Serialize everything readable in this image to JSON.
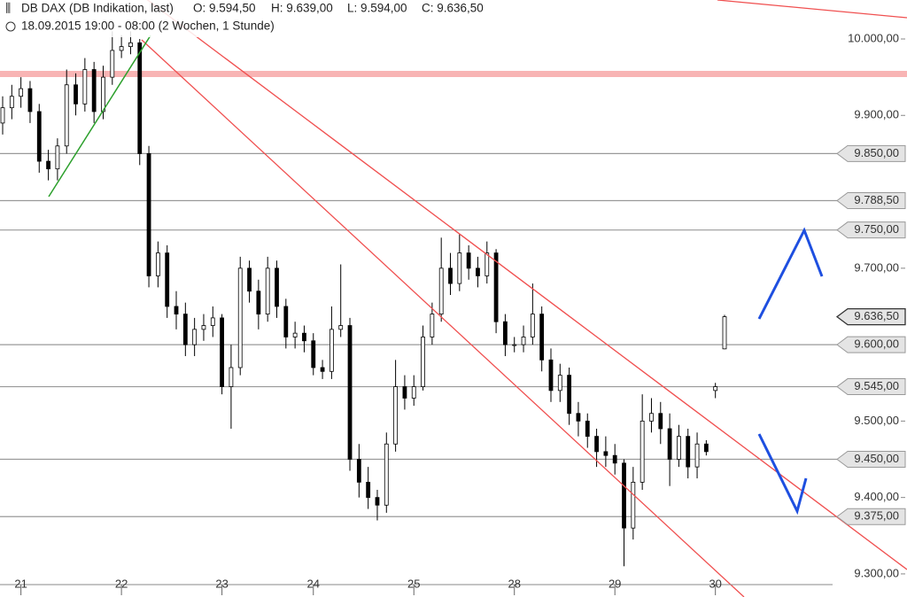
{
  "header": {
    "symbol": "DB DAX (DB Indikation, last)",
    "open": "O: 9.594,50",
    "high": "H: 9.639,00",
    "low": "L: 9.594,00",
    "close": "C: 9.636,50",
    "period": "18.09.2015 19:00 - 08:00 (2 Wochen, 1 Stunde)"
  },
  "chart_data": {
    "type": "candlestick",
    "categories": [
      null,
      null,
      "21",
      null,
      null,
      null,
      null,
      null,
      null,
      null,
      null,
      null,
      null,
      "22",
      null,
      null,
      null,
      null,
      null,
      null,
      null,
      null,
      null,
      null,
      "23",
      null,
      null,
      null,
      null,
      null,
      null,
      null,
      null,
      null,
      "24",
      null,
      null,
      null,
      null,
      null,
      null,
      null,
      null,
      null,
      null,
      "25",
      null,
      null,
      null,
      null,
      null,
      null,
      null,
      null,
      null,
      null,
      "28",
      null,
      null,
      null,
      null,
      null,
      null,
      null,
      null,
      null,
      null,
      "29",
      null,
      null,
      null,
      null,
      null,
      null,
      null,
      null,
      null,
      null,
      "30",
      null
    ],
    "open": [
      9890,
      9910,
      9925,
      9935,
      9905,
      9840,
      9830,
      9860,
      9940,
      9915,
      9960,
      9905,
      9950,
      9985,
      9990,
      9995,
      9850,
      9690,
      9720,
      9650,
      9640,
      9600,
      9620,
      9625,
      9635,
      9545,
      9570,
      9700,
      9670,
      9640,
      9700,
      9650,
      9610,
      9615,
      9605,
      9570,
      9565,
      9620,
      9625,
      9450,
      9420,
      9400,
      9390,
      9470,
      9545,
      9530,
      9545,
      9610,
      9640,
      9700,
      9680,
      9720,
      9700,
      9690,
      9720,
      9630,
      9600,
      9600,
      9610,
      9640,
      9580,
      9540,
      9560,
      9510,
      9500,
      9480,
      9460,
      9455,
      9445,
      9360,
      9420,
      9500,
      9510,
      9490,
      9450,
      9480,
      9440,
      9470,
      9540,
      9594.5
    ],
    "high": [
      9925,
      9940,
      9950,
      9945,
      9915,
      9855,
      9870,
      9960,
      9955,
      9975,
      9970,
      9965,
      10010,
      10005,
      10010,
      10000,
      9860,
      9735,
      9730,
      9670,
      9655,
      9635,
      9640,
      9650,
      9640,
      9600,
      9715,
      9710,
      9685,
      9715,
      9710,
      9660,
      9630,
      9625,
      9615,
      9580,
      9650,
      9705,
      9635,
      9470,
      9440,
      9410,
      9485,
      9580,
      9560,
      9560,
      9625,
      9655,
      9740,
      9720,
      9745,
      9730,
      9715,
      9735,
      9725,
      9640,
      9610,
      9625,
      9680,
      9650,
      9595,
      9575,
      9570,
      9525,
      9510,
      9490,
      9480,
      9470,
      9450,
      9440,
      9535,
      9530,
      9525,
      9510,
      9495,
      9490,
      9485,
      9475,
      9550,
      9639
    ],
    "low": [
      9875,
      9895,
      9910,
      9890,
      9825,
      9815,
      9815,
      9850,
      9900,
      9905,
      9890,
      9895,
      9940,
      9975,
      9980,
      9835,
      9675,
      9675,
      9635,
      9620,
      9585,
      9585,
      9605,
      9610,
      9535,
      9490,
      9560,
      9655,
      9620,
      9630,
      9635,
      9595,
      9595,
      9590,
      9560,
      9555,
      9555,
      9610,
      9435,
      9400,
      9385,
      9370,
      9380,
      9460,
      9515,
      9520,
      9540,
      9600,
      9630,
      9665,
      9670,
      9685,
      9675,
      9680,
      9615,
      9585,
      9590,
      9590,
      9600,
      9565,
      9525,
      9525,
      9495,
      9480,
      9465,
      9440,
      9440,
      9430,
      9310,
      9345,
      9410,
      9485,
      9470,
      9415,
      9440,
      9425,
      9425,
      9455,
      9530,
      9594
    ],
    "close": [
      9910,
      9925,
      9935,
      9905,
      9840,
      9830,
      9860,
      9940,
      9915,
      9960,
      9905,
      9950,
      9985,
      9990,
      9995,
      9850,
      9690,
      9720,
      9650,
      9640,
      9600,
      9620,
      9625,
      9635,
      9545,
      9570,
      9700,
      9670,
      9640,
      9700,
      9650,
      9610,
      9615,
      9605,
      9570,
      9565,
      9620,
      9625,
      9450,
      9420,
      9400,
      9390,
      9470,
      9545,
      9530,
      9545,
      9610,
      9640,
      9700,
      9680,
      9720,
      9700,
      9690,
      9720,
      9630,
      9600,
      9600,
      9610,
      9640,
      9580,
      9540,
      9560,
      9510,
      9500,
      9480,
      9460,
      9455,
      9445,
      9360,
      9420,
      9500,
      9510,
      9490,
      9450,
      9480,
      9440,
      9470,
      9460,
      9545,
      9636.5
    ],
    "ylim": [
      9286,
      10051
    ],
    "yticks": [
      {
        "value": 10000,
        "label": "10.000,00"
      },
      {
        "value": 9900,
        "label": "9.900,00"
      },
      {
        "value": 9700,
        "label": "9.700,00"
      },
      {
        "value": 9500,
        "label": "9.500,00"
      },
      {
        "value": 9400,
        "label": "9.400,00"
      },
      {
        "value": 9300,
        "label": "9.300,00"
      }
    ],
    "levels": [
      {
        "value": 9850,
        "label": "9.850,00"
      },
      {
        "value": 9788.5,
        "label": "9.788,50"
      },
      {
        "value": 9750,
        "label": "9.750,00"
      },
      {
        "value": 9600,
        "label": "9.600,00"
      },
      {
        "value": 9545,
        "label": "9.545,00"
      },
      {
        "value": 9450,
        "label": "9.450,00"
      },
      {
        "value": 9375,
        "label": "9.375,00"
      }
    ],
    "last_price": {
      "value": 9636.5,
      "label": "9.636,50"
    },
    "up_color": "#ffffff",
    "down_color": "#000000"
  }
}
